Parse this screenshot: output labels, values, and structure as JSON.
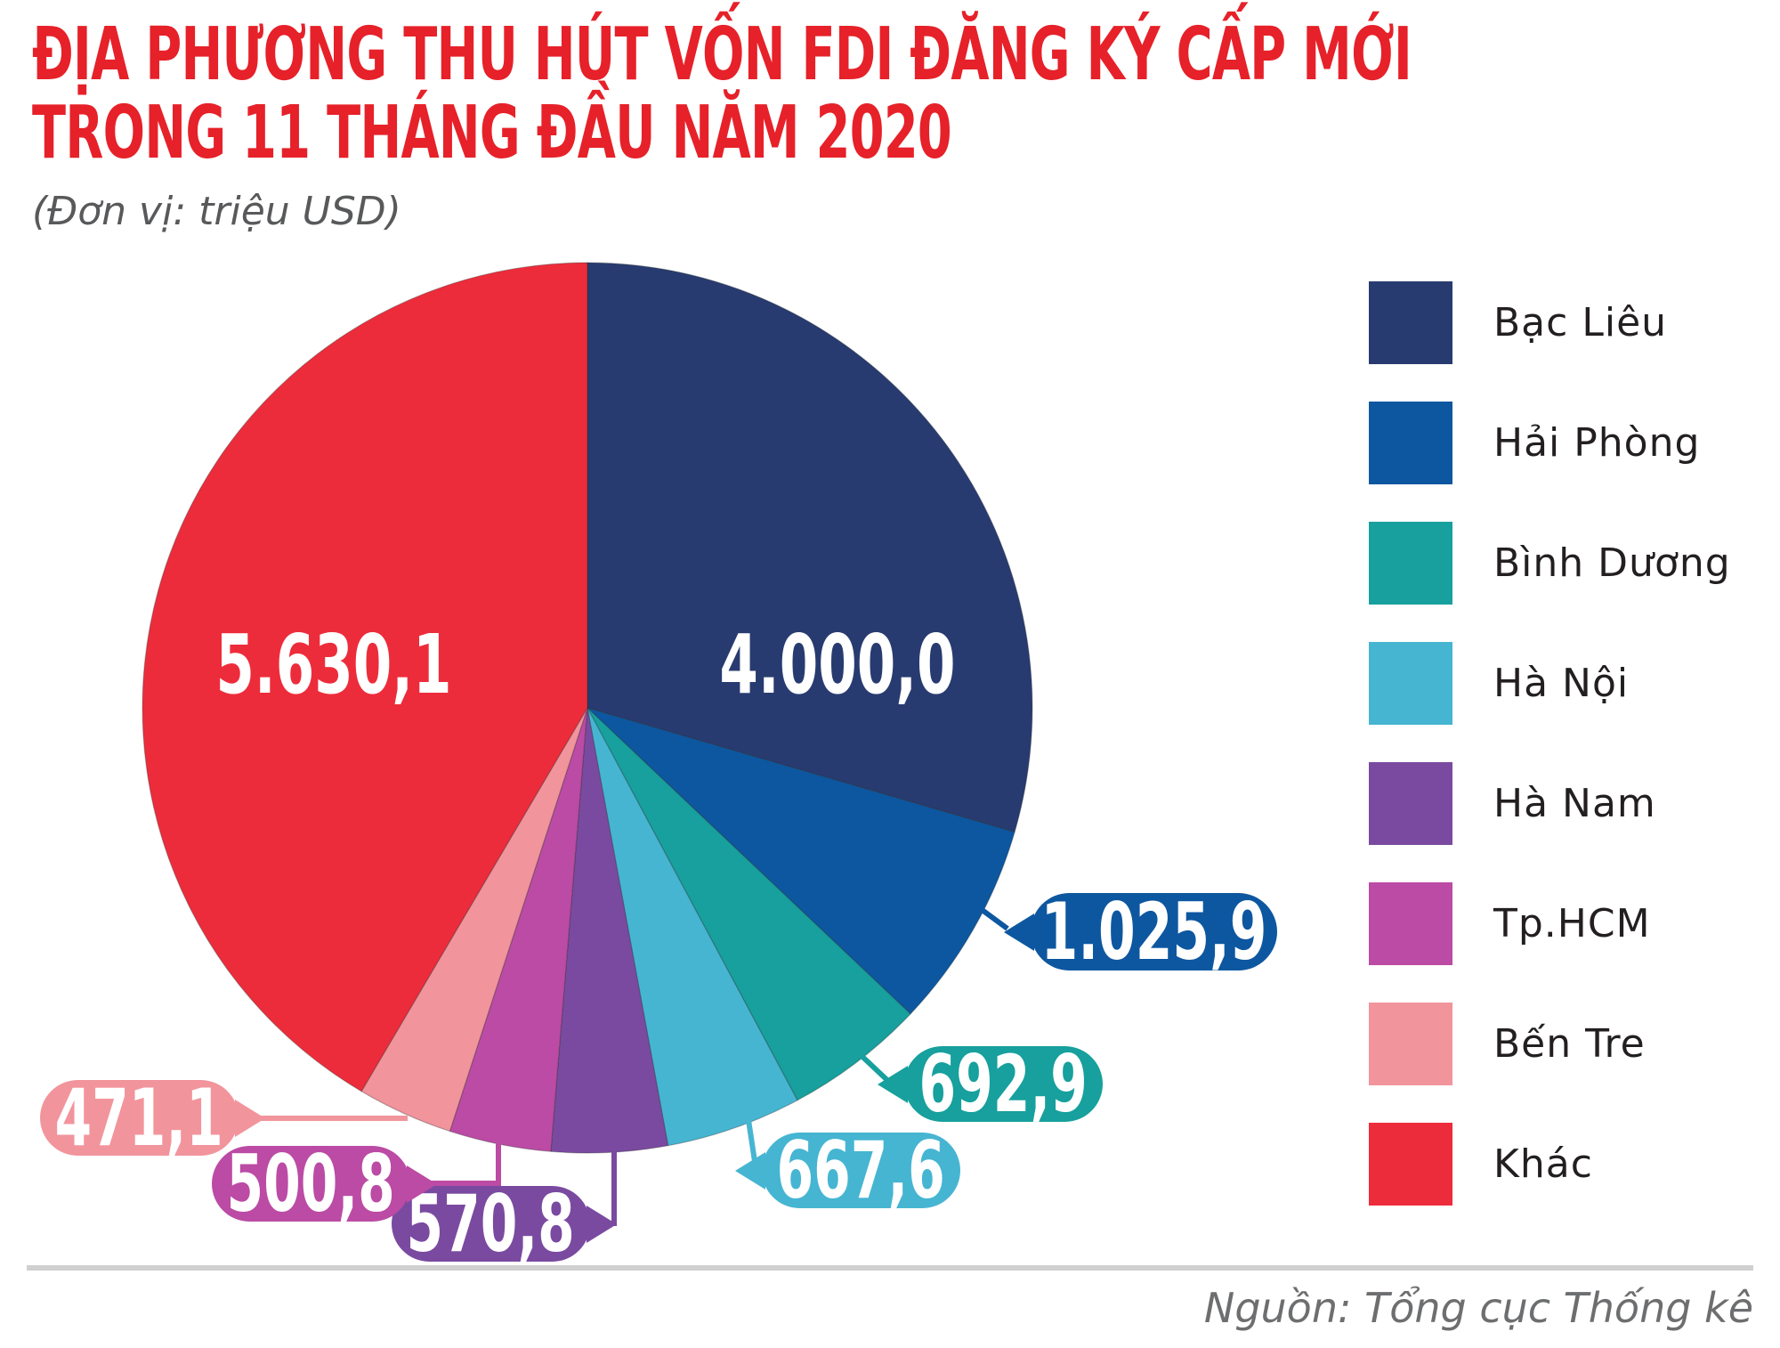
{
  "title": {
    "line1": "ĐỊA PHƯƠNG THU HÚT VỐN FDI ĐĂNG KÝ CẤP MỚI",
    "line2": "TRONG 11 THÁNG ĐẦU NĂM 2020",
    "color": "#e62129"
  },
  "subtitle": "(Đơn vị: triệu USD)",
  "source": "Nguồn: Tổng cục Thống kê",
  "chart_data": {
    "type": "pie",
    "unit": "triệu USD",
    "start_angle_deg": 0,
    "direction": "clockwise",
    "legend_position": "right",
    "total": 13559.2,
    "series": [
      {
        "label": "Bạc Liêu",
        "value": 4000.0,
        "display": "4.000,0",
        "color": "#283b70",
        "label_placement": "inside"
      },
      {
        "label": "Hải Phòng",
        "value": 1025.9,
        "display": "1.025,9",
        "color": "#0d57a0",
        "label_placement": "callout"
      },
      {
        "label": "Bình Dương",
        "value": 692.9,
        "display": "692,9",
        "color": "#17a09d",
        "label_placement": "callout"
      },
      {
        "label": "Hà Nội",
        "value": 667.6,
        "display": "667,6",
        "color": "#46b5d2",
        "label_placement": "callout"
      },
      {
        "label": "Hà Nam",
        "value": 570.8,
        "display": "570,8",
        "color": "#7a4aa0",
        "label_placement": "callout"
      },
      {
        "label": "Tp.HCM",
        "value": 500.8,
        "display": "500,8",
        "color": "#bb4ba4",
        "label_placement": "callout"
      },
      {
        "label": "Bến Tre",
        "value": 471.1,
        "display": "471,1",
        "color": "#f2949c",
        "label_placement": "callout"
      },
      {
        "label": "Khác",
        "value": 5630.1,
        "display": "5.630,1",
        "color": "#ed2c3b",
        "label_placement": "inside"
      }
    ]
  }
}
